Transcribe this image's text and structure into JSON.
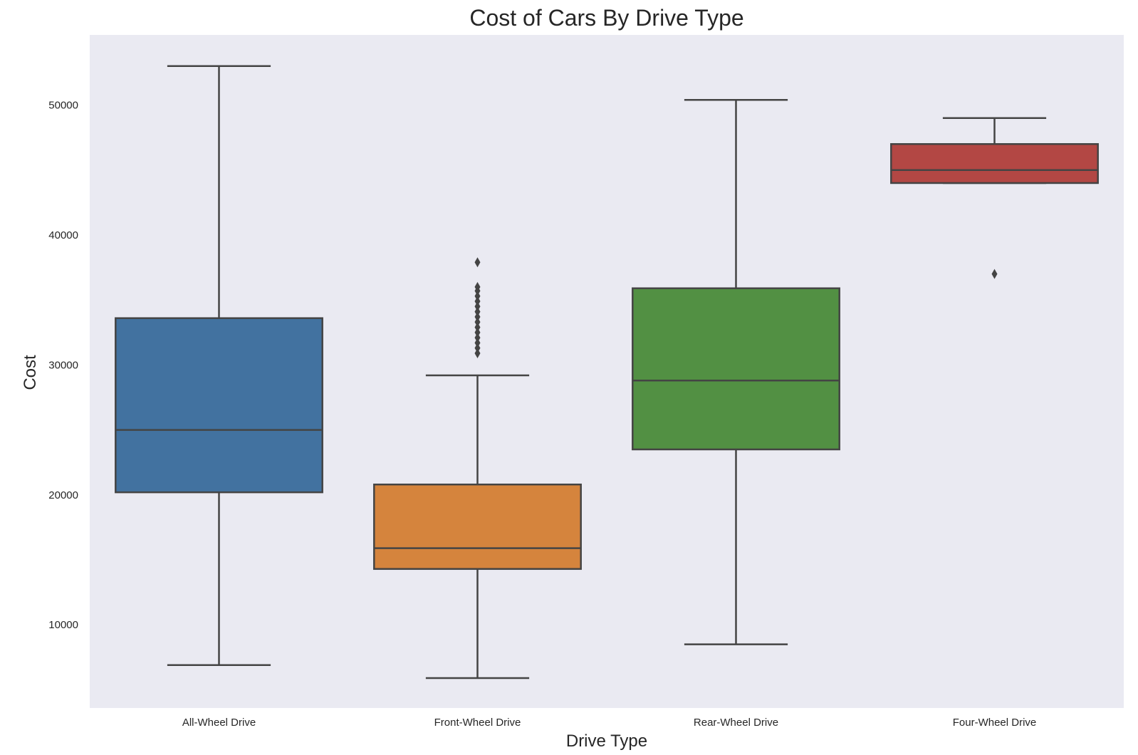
{
  "chart_data": {
    "type": "boxplot",
    "title": "Cost of Cars By Drive Type",
    "xlabel": "Drive Type",
    "ylabel": "Cost",
    "ylim": [
      3600,
      55400
    ],
    "yticks": [
      10000,
      20000,
      30000,
      40000,
      50000
    ],
    "grid": false,
    "categories": [
      "All-Wheel Drive",
      "Front-Wheel Drive",
      "Rear-Wheel Drive",
      "Four-Wheel Drive"
    ],
    "boxes": [
      {
        "category": "All-Wheel Drive",
        "whisker_low": 6900,
        "q1": 20200,
        "median": 25000,
        "q3": 33600,
        "whisker_high": 53000,
        "outliers": [],
        "color": "#4272a0"
      },
      {
        "category": "Front-Wheel Drive",
        "whisker_low": 5900,
        "q1": 14300,
        "median": 15900,
        "q3": 20800,
        "whisker_high": 29200,
        "outliers": [
          30900,
          31300,
          31700,
          32100,
          32500,
          32900,
          33300,
          33700,
          34100,
          34500,
          34900,
          35300,
          35700,
          36000,
          37900
        ],
        "color": "#d5843d"
      },
      {
        "category": "Rear-Wheel Drive",
        "whisker_low": 8500,
        "q1": 23500,
        "median": 28800,
        "q3": 35900,
        "whisker_high": 50400,
        "outliers": [],
        "color": "#529043"
      },
      {
        "category": "Four-Wheel Drive",
        "whisker_low": 44000,
        "q1": 44000,
        "median": 45000,
        "q3": 47000,
        "whisker_high": 49000,
        "outliers": [
          37000
        ],
        "color": "#b34744"
      }
    ],
    "colors": {
      "plot_background": "#eaeaf2",
      "line": "#444444",
      "text": "#262626"
    }
  }
}
